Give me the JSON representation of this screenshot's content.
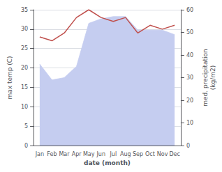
{
  "chart_data": {
    "type": "line",
    "xlabel": "date (month)",
    "ylabel": "max temp (C)",
    "y2label": "med. precipitation\n(kg/m2)",
    "categories": [
      "Jan",
      "Feb",
      "Mar",
      "Apr",
      "May",
      "Jun",
      "Jul",
      "Aug",
      "Sep",
      "Oct",
      "Nov",
      "Dec"
    ],
    "series": [
      {
        "color": "#c0504d",
        "values": [
          28,
          27,
          29,
          33,
          35,
          33,
          32,
          33,
          29,
          31,
          30,
          31
        ]
      },
      {
        "type": "area",
        "axis": "y2",
        "color": "#c5cdf0",
        "values": [
          36,
          29,
          30,
          35,
          54,
          56,
          57,
          57,
          51,
          51,
          51,
          49
        ]
      }
    ],
    "ylim": [
      0,
      35
    ],
    "yticks": [
      0,
      5,
      10,
      15,
      20,
      25,
      30,
      35
    ],
    "y2lim": [
      0,
      60
    ],
    "y2ticks": [
      0,
      10,
      20,
      30,
      40,
      50,
      60
    ],
    "grid": true
  }
}
